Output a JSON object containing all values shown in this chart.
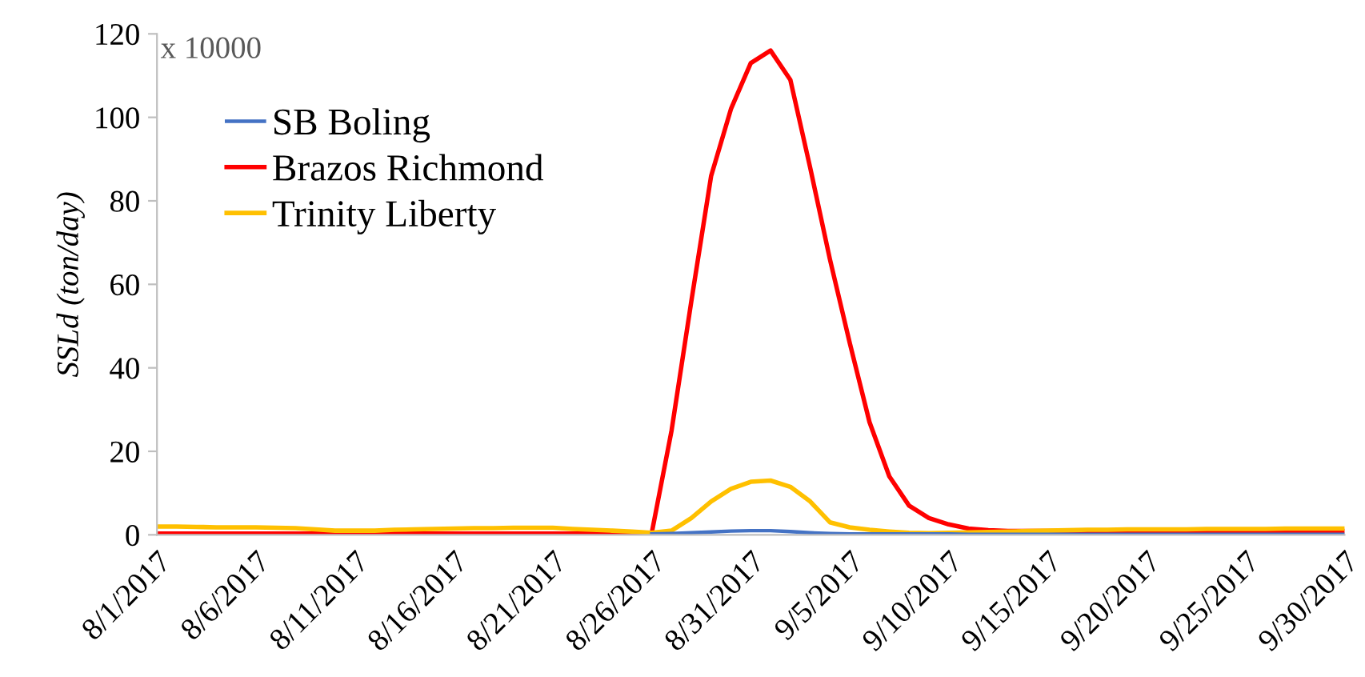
{
  "chart_data": {
    "type": "line",
    "ylabel": "SSLd (ton/day)",
    "annotations": [
      "x 10000"
    ],
    "x": [
      "2017-08-01",
      "2017-08-02",
      "2017-08-03",
      "2017-08-04",
      "2017-08-05",
      "2017-08-06",
      "2017-08-07",
      "2017-08-08",
      "2017-08-09",
      "2017-08-10",
      "2017-08-11",
      "2017-08-12",
      "2017-08-13",
      "2017-08-14",
      "2017-08-15",
      "2017-08-16",
      "2017-08-17",
      "2017-08-18",
      "2017-08-19",
      "2017-08-20",
      "2017-08-21",
      "2017-08-22",
      "2017-08-23",
      "2017-08-24",
      "2017-08-25",
      "2017-08-26",
      "2017-08-27",
      "2017-08-28",
      "2017-08-29",
      "2017-08-30",
      "2017-08-31",
      "2017-09-01",
      "2017-09-02",
      "2017-09-03",
      "2017-09-04",
      "2017-09-05",
      "2017-09-06",
      "2017-09-07",
      "2017-09-08",
      "2017-09-09",
      "2017-09-10",
      "2017-09-11",
      "2017-09-12",
      "2017-09-13",
      "2017-09-14",
      "2017-09-15",
      "2017-09-16",
      "2017-09-17",
      "2017-09-18",
      "2017-09-19",
      "2017-09-20",
      "2017-09-21",
      "2017-09-22",
      "2017-09-23",
      "2017-09-24",
      "2017-09-25",
      "2017-09-26",
      "2017-09-27",
      "2017-09-28",
      "2017-09-29",
      "2017-09-30"
    ],
    "series": [
      {
        "name": "SB Boling",
        "color": "#4472c4",
        "values": [
          null,
          null,
          null,
          null,
          null,
          null,
          null,
          null,
          null,
          null,
          null,
          null,
          null,
          null,
          null,
          null,
          null,
          null,
          null,
          null,
          null,
          null,
          null,
          null,
          null,
          0.2,
          0.3,
          0.5,
          0.7,
          0.9,
          1,
          1,
          0.8,
          0.5,
          0.3,
          0.2,
          0.2,
          0.2,
          0.2,
          0.2,
          0.2,
          0.1,
          0.1,
          0.1,
          0.1,
          0.1,
          0.1,
          0.1,
          0.1,
          0.1,
          0.1,
          0.1,
          0.1,
          0.1,
          0.1,
          0.1,
          0.1,
          0.1,
          0.1,
          0.1,
          0.1
        ]
      },
      {
        "name": "Brazos Richmond",
        "color": "#ff0000",
        "values": [
          0.3,
          0.3,
          0.3,
          0.3,
          0.3,
          0.3,
          0.3,
          0.3,
          0.3,
          0.3,
          0.3,
          0.3,
          0.3,
          0.3,
          0.3,
          0.3,
          0.3,
          0.3,
          0.3,
          0.3,
          0.3,
          0.3,
          0.3,
          0.3,
          0.3,
          0.5,
          25,
          56,
          86,
          102,
          113,
          116,
          109,
          88,
          66,
          46,
          27,
          14,
          7,
          4,
          2.5,
          1.5,
          1.1,
          0.9,
          0.9,
          0.9,
          0.9,
          0.9,
          0.9,
          0.9,
          0.9,
          0.9,
          0.9,
          0.9,
          0.9,
          0.9,
          0.9,
          0.9,
          0.9,
          0.9,
          0.9
        ]
      },
      {
        "name": "Trinity Liberty",
        "color": "#ffc000",
        "values": [
          2,
          2,
          1.9,
          1.8,
          1.8,
          1.8,
          1.7,
          1.6,
          1.3,
          1,
          1,
          1,
          1.2,
          1.3,
          1.4,
          1.5,
          1.6,
          1.6,
          1.7,
          1.7,
          1.7,
          1.4,
          1.2,
          1,
          0.8,
          0.5,
          1,
          4,
          8,
          11,
          12.7,
          13,
          11.5,
          8,
          3,
          1.8,
          1.2,
          0.8,
          0.5,
          0.4,
          0.5,
          0.6,
          0.7,
          0.8,
          0.9,
          1,
          1.1,
          1.2,
          1.2,
          1.3,
          1.3,
          1.3,
          1.3,
          1.4,
          1.4,
          1.4,
          1.4,
          1.5,
          1.5,
          1.5,
          1.5
        ]
      }
    ],
    "xlim": [
      "2017-08-01",
      "2017-09-30"
    ],
    "xticks": [
      {
        "value": "2017-08-01",
        "label": "8/1/2017"
      },
      {
        "value": "2017-08-06",
        "label": "8/6/2017"
      },
      {
        "value": "2017-08-11",
        "label": "8/11/2017"
      },
      {
        "value": "2017-08-16",
        "label": "8/16/2017"
      },
      {
        "value": "2017-08-21",
        "label": "8/21/2017"
      },
      {
        "value": "2017-08-26",
        "label": "8/26/2017"
      },
      {
        "value": "2017-08-31",
        "label": "8/31/2017"
      },
      {
        "value": "2017-09-05",
        "label": "9/5/2017"
      },
      {
        "value": "2017-09-10",
        "label": "9/10/2017"
      },
      {
        "value": "2017-09-15",
        "label": "9/15/2017"
      },
      {
        "value": "2017-09-20",
        "label": "9/20/2017"
      },
      {
        "value": "2017-09-25",
        "label": "9/25/2017"
      },
      {
        "value": "2017-09-30",
        "label": "9/30/2017"
      }
    ],
    "ylim": [
      0,
      120
    ],
    "yticks": [
      0,
      20,
      40,
      60,
      80,
      100,
      120
    ],
    "legend": "top left",
    "grid": false,
    "marker": "none",
    "line_style": "solid"
  }
}
